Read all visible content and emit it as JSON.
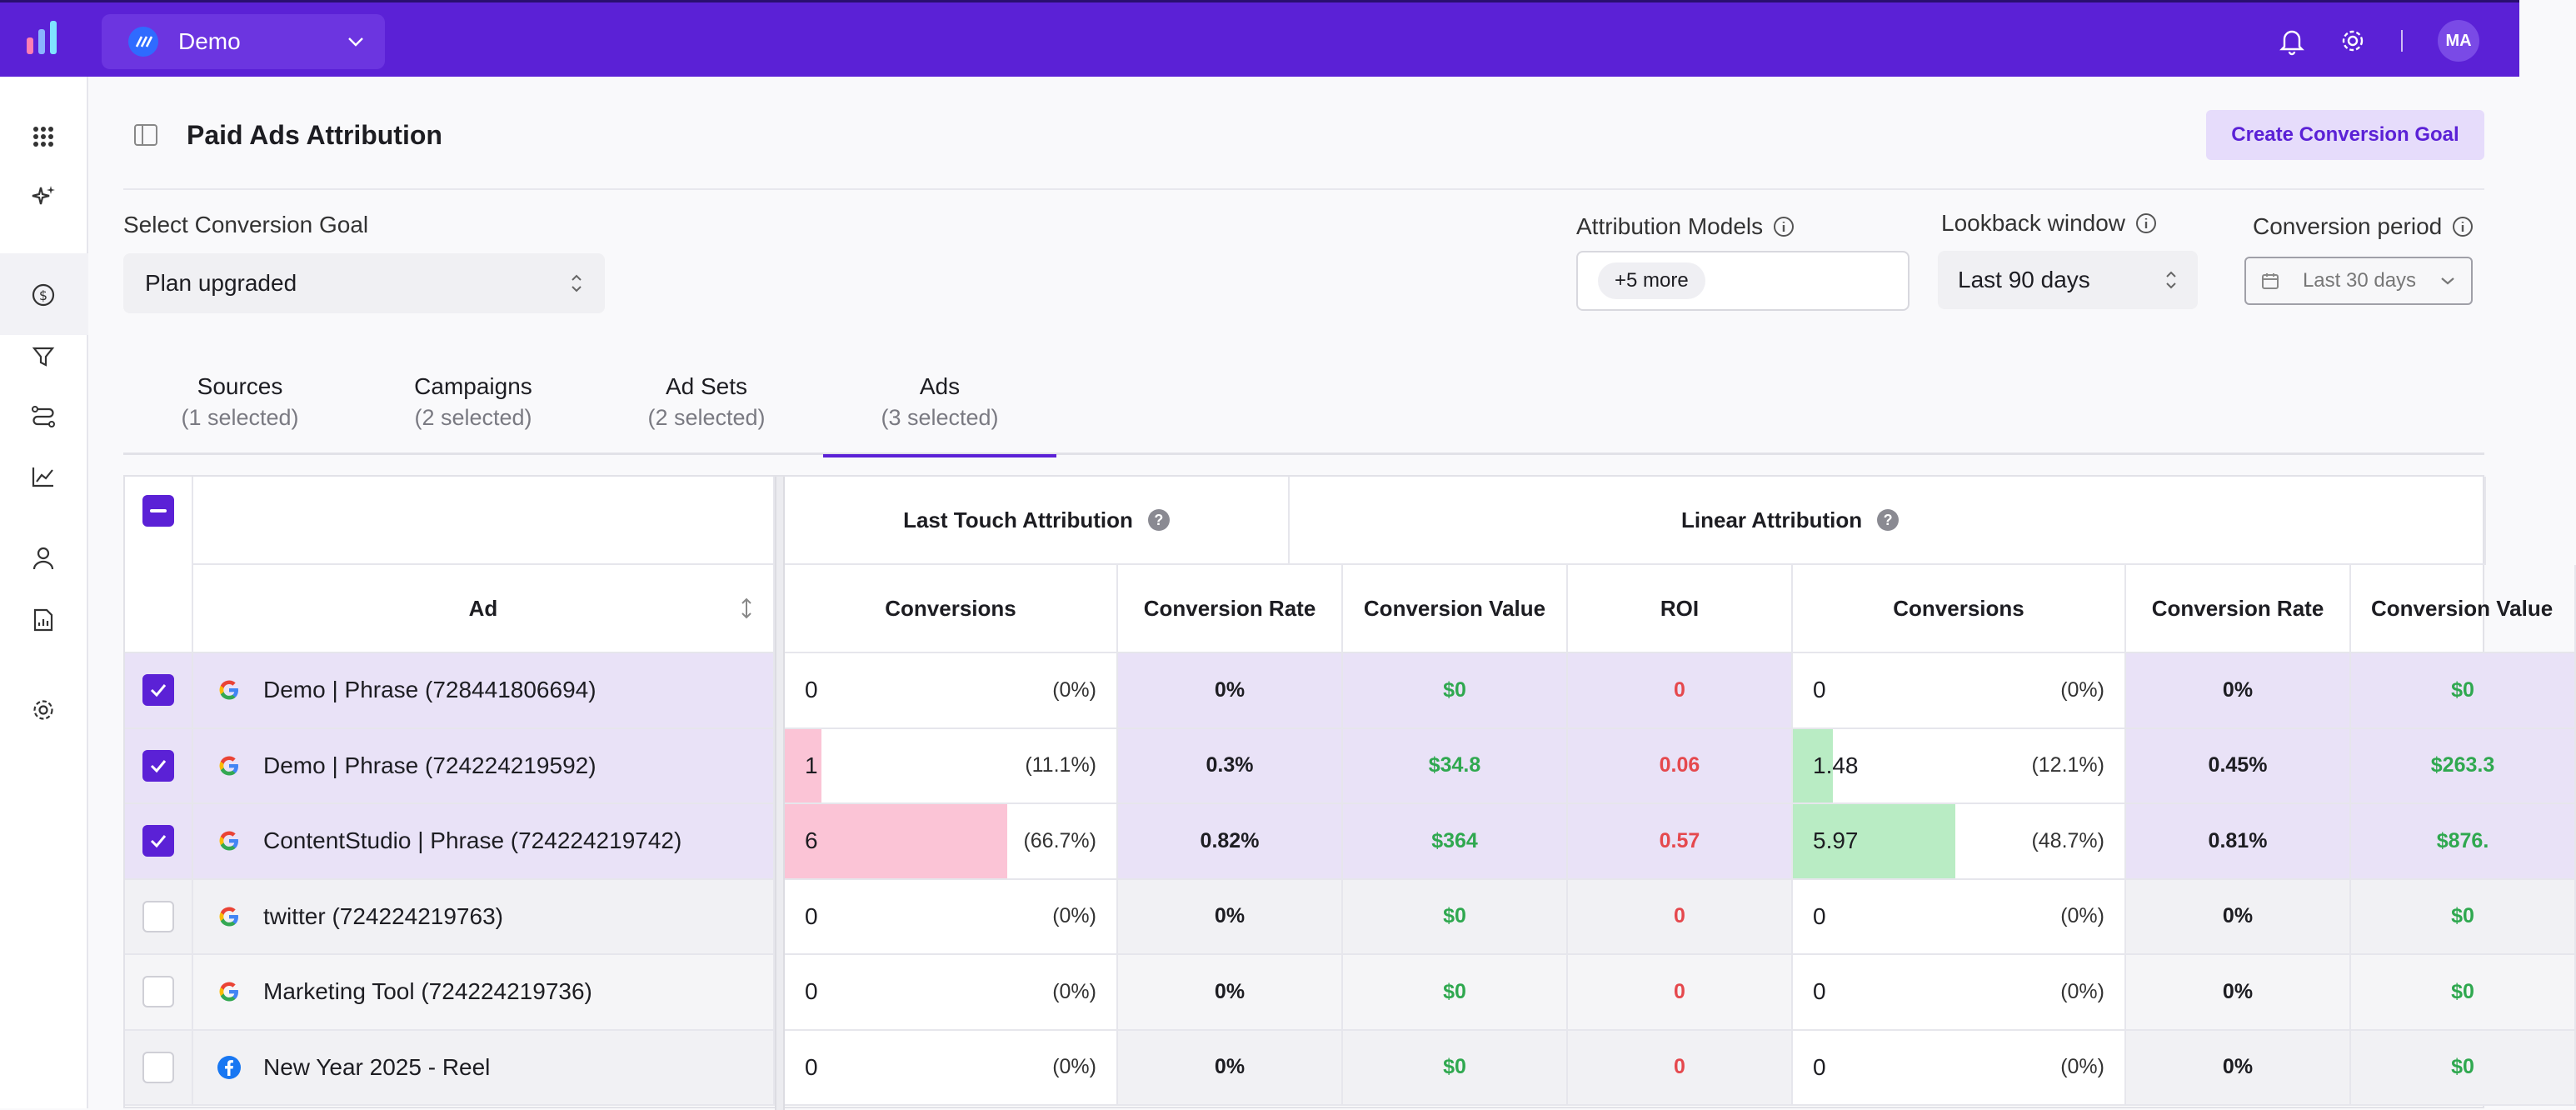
{
  "workspace": {
    "name": "Demo"
  },
  "user": {
    "initials": "MA"
  },
  "page": {
    "title": "Paid Ads Attribution",
    "create_button": "Create Conversion Goal"
  },
  "filters": {
    "goal_label": "Select Conversion Goal",
    "goal_value": "Plan upgraded",
    "models_label": "Attribution Models",
    "models_chip": "+5 more",
    "lookback_label": "Lookback window",
    "lookback_value": "Last 90 days",
    "period_label": "Conversion period",
    "period_value": "Last 30 days"
  },
  "tabs": [
    {
      "label": "Sources",
      "sub": "(1 selected)"
    },
    {
      "label": "Campaigns",
      "sub": "(2 selected)"
    },
    {
      "label": "Ad Sets",
      "sub": "(2 selected)"
    },
    {
      "label": "Ads",
      "sub": "(3 selected)"
    }
  ],
  "table": {
    "ad_header": "Ad",
    "groups": [
      "Last Touch Attribution",
      "Linear Attribution"
    ],
    "columns": [
      "Conversions",
      "Conversion Rate",
      "Conversion Value",
      "ROI",
      "Conversions",
      "Conversion Rate",
      "Conversion Value"
    ],
    "rows": [
      {
        "selected": true,
        "source": "google",
        "ad": "Demo | Phrase (728441806694)",
        "lt_conv": "0",
        "lt_share": "(0%)",
        "lt_share_value": 0,
        "lt_rate": "0%",
        "lt_value": "$0",
        "lt_roi": "0",
        "lin_conv": "0",
        "lin_share": "(0%)",
        "lin_share_value": 0,
        "lin_rate": "0%",
        "lin_value": "$0"
      },
      {
        "selected": true,
        "source": "google",
        "ad": "Demo | Phrase (724224219592)",
        "lt_conv": "1",
        "lt_share": "(11.1%)",
        "lt_share_value": 11.1,
        "lt_rate": "0.3%",
        "lt_value": "$34.8",
        "lt_roi": "0.06",
        "lin_conv": "1.48",
        "lin_share": "(12.1%)",
        "lin_share_value": 12.1,
        "lin_rate": "0.45%",
        "lin_value": "$263.3"
      },
      {
        "selected": true,
        "source": "google",
        "ad": "ContentStudio | Phrase (724224219742)",
        "lt_conv": "6",
        "lt_share": "(66.7%)",
        "lt_share_value": 66.7,
        "lt_rate": "0.82%",
        "lt_value": "$364",
        "lt_roi": "0.57",
        "lin_conv": "5.97",
        "lin_share": "(48.7%)",
        "lin_share_value": 48.7,
        "lin_rate": "0.81%",
        "lin_value": "$876."
      },
      {
        "selected": false,
        "source": "google",
        "ad": "twitter (724224219763)",
        "lt_conv": "0",
        "lt_share": "(0%)",
        "lt_share_value": 0,
        "lt_rate": "0%",
        "lt_value": "$0",
        "lt_roi": "0",
        "lin_conv": "0",
        "lin_share": "(0%)",
        "lin_share_value": 0,
        "lin_rate": "0%",
        "lin_value": "$0"
      },
      {
        "selected": false,
        "source": "google",
        "ad": "Marketing Tool (724224219736)",
        "lt_conv": "0",
        "lt_share": "(0%)",
        "lt_share_value": 0,
        "lt_rate": "0%",
        "lt_value": "$0",
        "lt_roi": "0",
        "lin_conv": "0",
        "lin_share": "(0%)",
        "lin_share_value": 0,
        "lin_rate": "0%",
        "lin_value": "$0"
      },
      {
        "selected": false,
        "source": "facebook",
        "ad": "New Year 2025 - Reel",
        "lt_conv": "0",
        "lt_share": "(0%)",
        "lt_share_value": 0,
        "lt_rate": "0%",
        "lt_value": "$0",
        "lt_roi": "0",
        "lin_conv": "0",
        "lin_share": "(0%)",
        "lin_share_value": 0,
        "lin_rate": "0%",
        "lin_value": "$0"
      }
    ]
  },
  "colors": {
    "brand": "#5b21d6",
    "selected_row": "#e9e2f7",
    "lt_bar": "#fbc4d6",
    "lin_bar": "#b9ecc4"
  }
}
